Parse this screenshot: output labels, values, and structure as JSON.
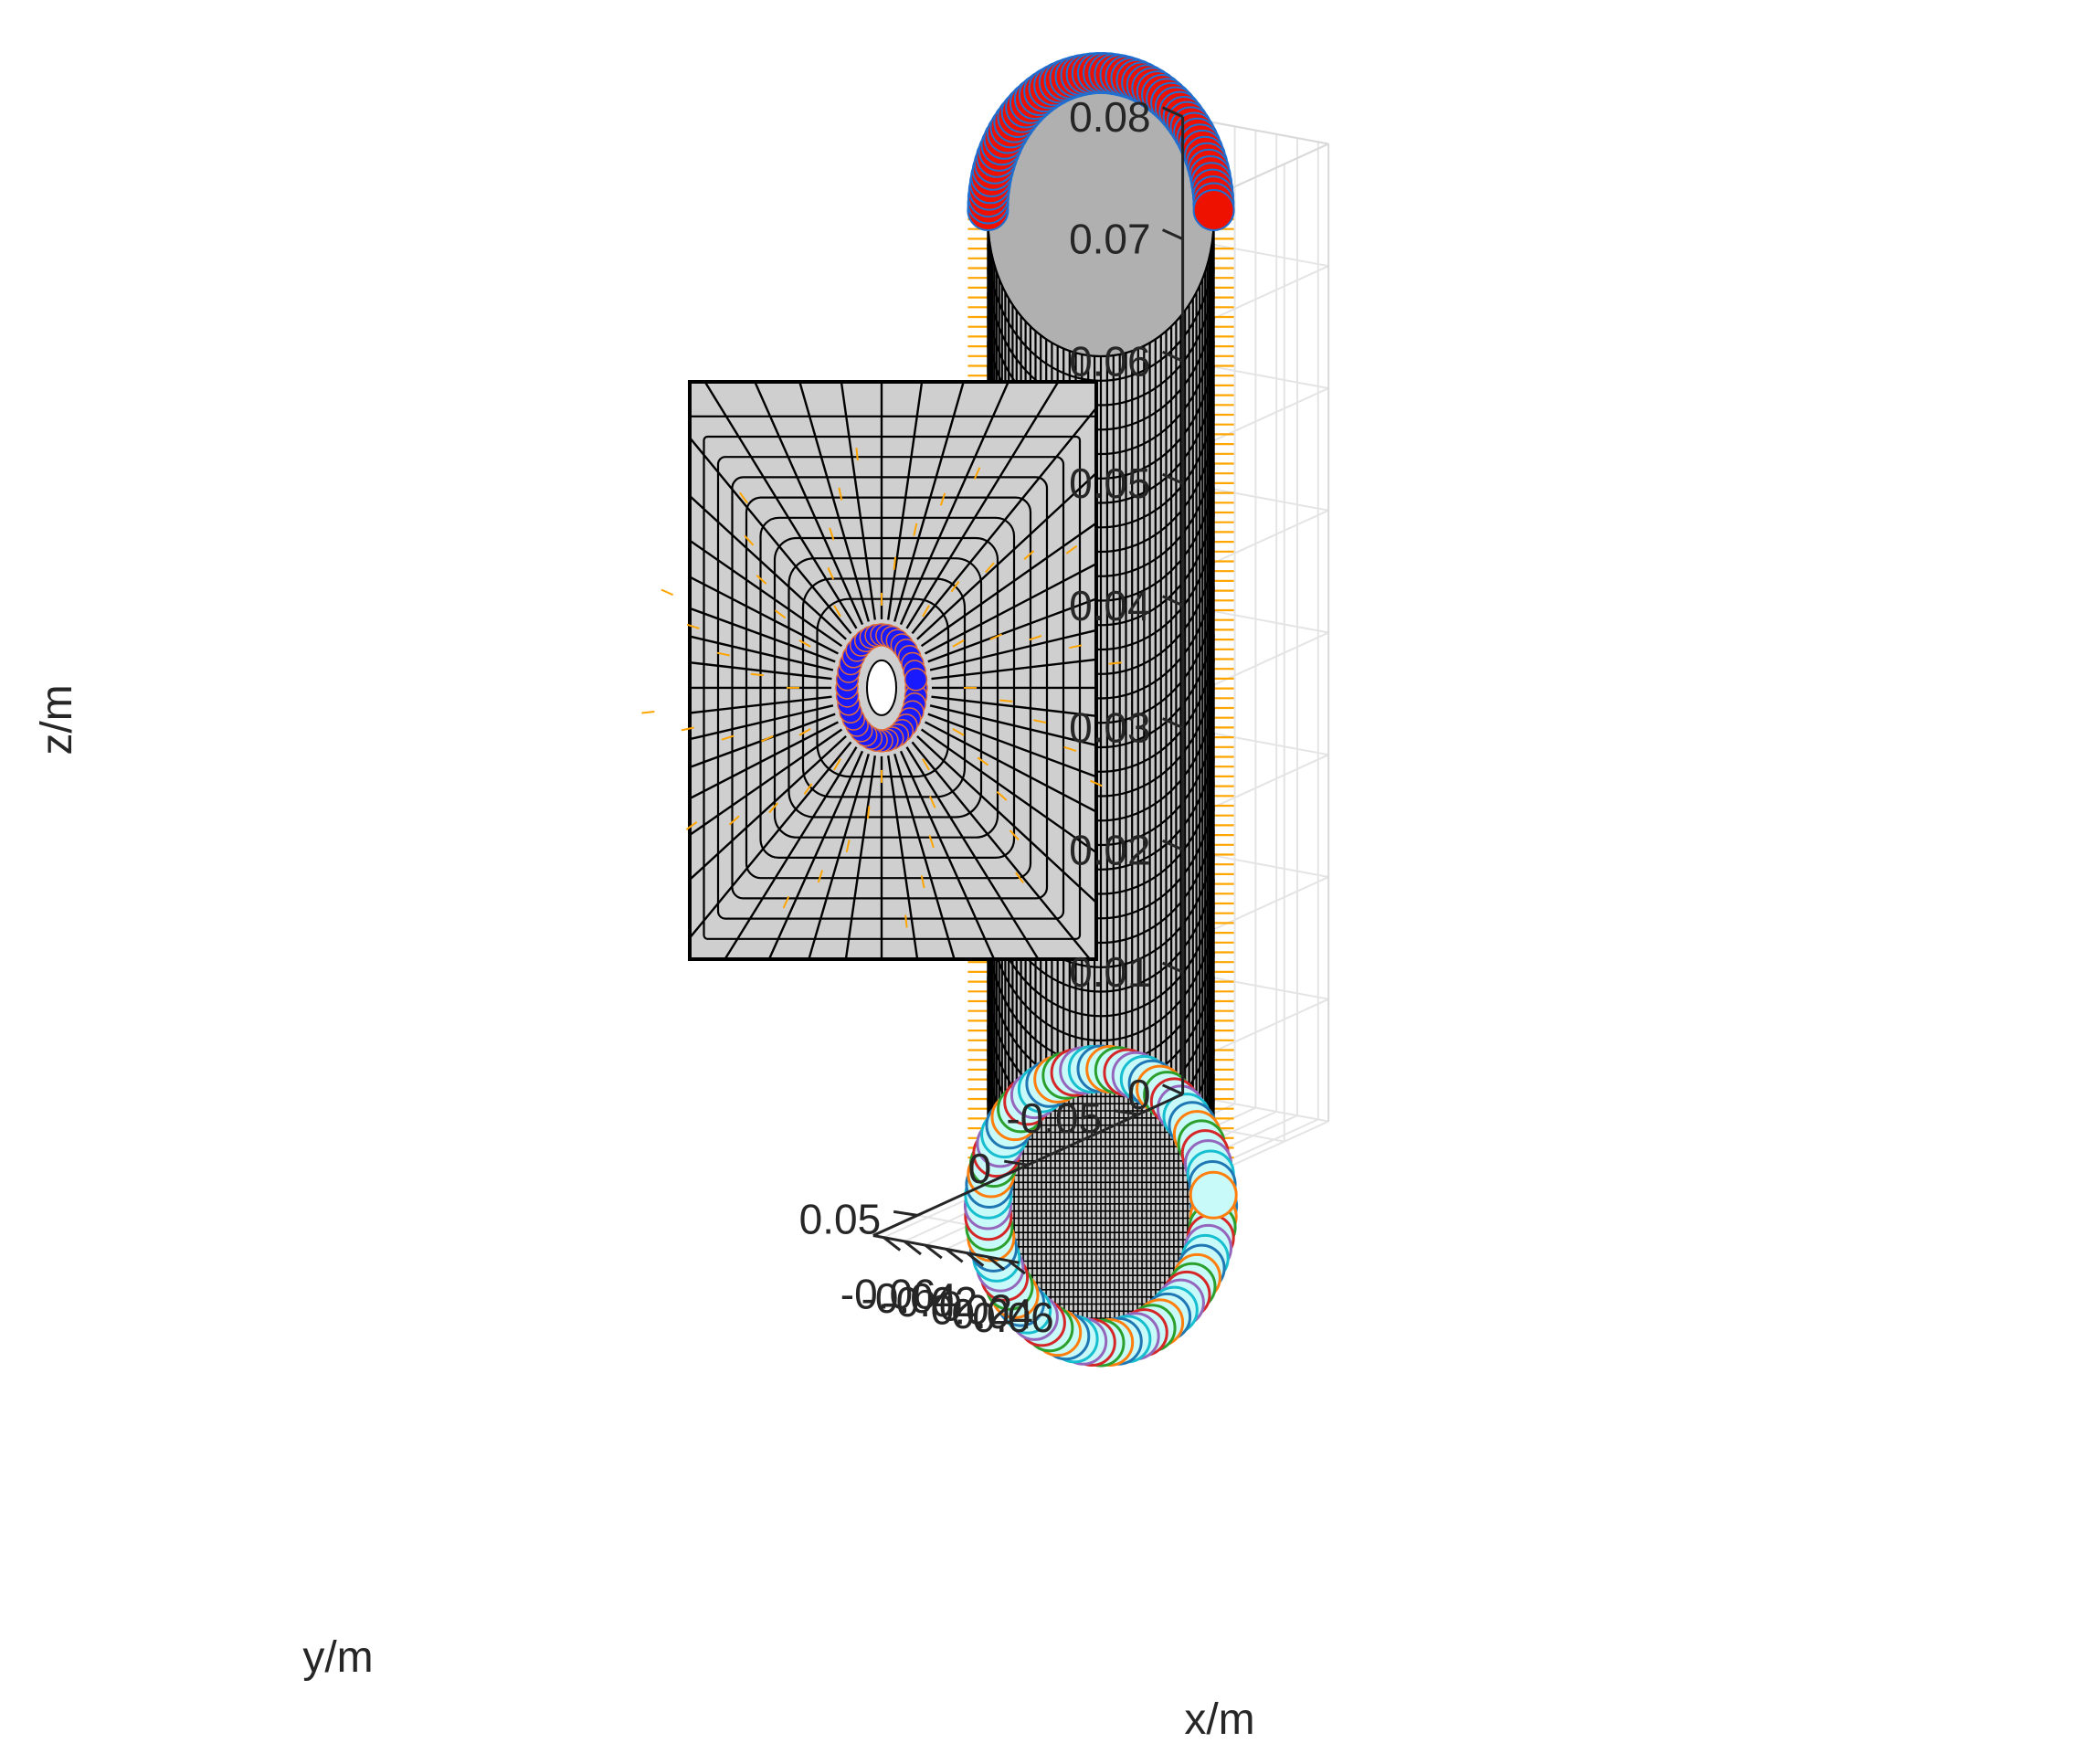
{
  "chart_data": {
    "type": "surface-3d",
    "xlabel": "x/m",
    "ylabel": "y/m",
    "zlabel": "z/m",
    "xticks": [
      "-0.06",
      "-0.04",
      "-0.02",
      "0",
      "0.02",
      "0.04",
      "0.06"
    ],
    "yticks": [
      "-0.05",
      "0",
      "0.05"
    ],
    "zticks": [
      "0",
      "0.01",
      "0.02",
      "0.03",
      "0.04",
      "0.05",
      "0.06",
      "0.07",
      "0.08"
    ],
    "xlim": [
      -0.07,
      0.07
    ],
    "ylim": [
      -0.07,
      0.07
    ],
    "zlim": [
      0,
      0.08
    ],
    "grid": true,
    "cylinder": {
      "radius": 0.055,
      "z_min": 0,
      "z_max": 0.08
    },
    "hole": {
      "radius": 0.004,
      "z_center": 0.043
    },
    "colors": {
      "mesh_face": "#c8c8c8",
      "mesh_edge": "#000000",
      "normal_arrows": "#ffa500",
      "top_markers": "#ee1100",
      "bottom_markers": "#c8fafa",
      "hole_markers": "#1a1aff",
      "grid": "#e4e4e4",
      "axes": "#262626"
    }
  }
}
